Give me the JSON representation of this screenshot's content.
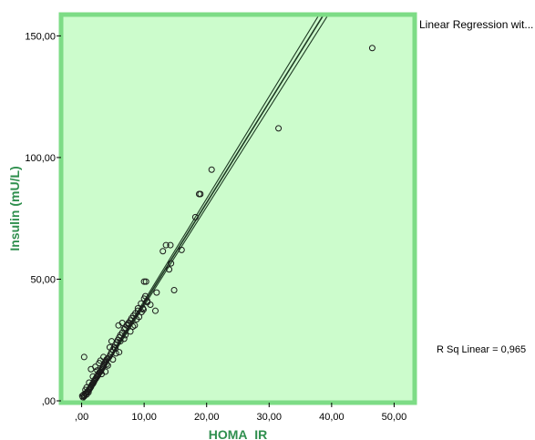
{
  "chart_data": {
    "type": "scatter",
    "title": "",
    "xlabel": "HOMA_IR",
    "ylabel": "Insulin  (mU/L)",
    "xlim": [
      -3,
      53
    ],
    "ylim": [
      0,
      158
    ],
    "x_ticks": [
      0,
      10,
      20,
      30,
      40,
      50
    ],
    "x_tick_labels": [
      ",00",
      "10,00",
      "20,00",
      "30,00",
      "40,00",
      "50,00"
    ],
    "y_ticks": [
      0,
      50,
      100,
      150
    ],
    "y_tick_labels": [
      ",00",
      "50,00",
      "100,00",
      "150,00"
    ],
    "grid": false,
    "legend_label": "Linear Regression wit...",
    "legend_placement": "top-right",
    "annotation": "R Sq Linear = 0,965",
    "plot_background": "#ccfccc",
    "frame_color": "#7ddc86",
    "axis_title_color": "#2f8f4e",
    "regression_line": {
      "fit": {
        "intercept": -1.2,
        "slope": 4.13
      },
      "ci_low": {
        "intercept": -1.5,
        "slope": 4.06
      },
      "ci_high": {
        "intercept": -0.9,
        "slope": 4.2
      },
      "color": "#1f3a24"
    },
    "points": [
      [
        0.1,
        2.0
      ],
      [
        0.2,
        1.5
      ],
      [
        0.3,
        2.5
      ],
      [
        0.4,
        1.8
      ],
      [
        0.5,
        2.2
      ],
      [
        0.4,
        18.0
      ],
      [
        0.6,
        2.8
      ],
      [
        0.7,
        3.2
      ],
      [
        0.8,
        2.6
      ],
      [
        0.9,
        3.6
      ],
      [
        1.0,
        4.0
      ],
      [
        1.1,
        3.5
      ],
      [
        1.2,
        4.6
      ],
      [
        1.3,
        5.0
      ],
      [
        1.4,
        5.4
      ],
      [
        1.5,
        5.8
      ],
      [
        1.6,
        6.4
      ],
      [
        1.7,
        6.8
      ],
      [
        1.8,
        7.0
      ],
      [
        1.9,
        7.5
      ],
      [
        2.0,
        8.0
      ],
      [
        2.1,
        8.5
      ],
      [
        2.2,
        9.0
      ],
      [
        2.3,
        9.2
      ],
      [
        2.4,
        9.8
      ],
      [
        2.5,
        10.0
      ],
      [
        2.6,
        10.5
      ],
      [
        2.7,
        11.0
      ],
      [
        2.8,
        11.5
      ],
      [
        2.9,
        11.8
      ],
      [
        3.0,
        12.0
      ],
      [
        3.1,
        12.5
      ],
      [
        3.2,
        13.0
      ],
      [
        3.3,
        13.5
      ],
      [
        3.4,
        14.0
      ],
      [
        3.5,
        14.5
      ],
      [
        3.6,
        15.0
      ],
      [
        3.7,
        15.5
      ],
      [
        3.8,
        16.0
      ],
      [
        3.9,
        16.5
      ],
      [
        4.0,
        17.0
      ],
      [
        4.2,
        17.5
      ],
      [
        4.4,
        18.0
      ],
      [
        4.6,
        19.0
      ],
      [
        4.8,
        20.0
      ],
      [
        5.0,
        21.0
      ],
      [
        5.2,
        22.0
      ],
      [
        5.4,
        23.0
      ],
      [
        5.6,
        24.0
      ],
      [
        5.8,
        25.0
      ],
      [
        6.0,
        26.0
      ],
      [
        6.2,
        27.0
      ],
      [
        6.5,
        28.0
      ],
      [
        6.8,
        29.5
      ],
      [
        7.0,
        30.0
      ],
      [
        7.2,
        31.0
      ],
      [
        7.5,
        32.0
      ],
      [
        7.8,
        33.0
      ],
      [
        8.0,
        34.0
      ],
      [
        8.3,
        35.0
      ],
      [
        8.6,
        36.0
      ],
      [
        9.0,
        38.0
      ],
      [
        9.5,
        40.0
      ],
      [
        10.0,
        42.0
      ],
      [
        10.2,
        43.0
      ],
      [
        10.5,
        41.0
      ],
      [
        4.5,
        22.0
      ],
      [
        5.5,
        19.5
      ],
      [
        6.2,
        24.5
      ],
      [
        7.0,
        27.0
      ],
      [
        1.5,
        13.0
      ],
      [
        2.2,
        14.0
      ],
      [
        3.0,
        16.5
      ],
      [
        3.8,
        12.0
      ],
      [
        4.8,
        24.5
      ],
      [
        5.9,
        31.0
      ],
      [
        6.5,
        32.0
      ],
      [
        7.5,
        31.5
      ],
      [
        8.2,
        30.5
      ],
      [
        8.8,
        33.5
      ],
      [
        9.0,
        37.0
      ],
      [
        9.6,
        36.5
      ],
      [
        9.8,
        38.0
      ],
      [
        9.9,
        37.5
      ],
      [
        10.5,
        40.5
      ],
      [
        11.0,
        39.5
      ],
      [
        10.0,
        49.0
      ],
      [
        10.3,
        49.0
      ],
      [
        11.8,
        37.0
      ],
      [
        12.0,
        44.5
      ],
      [
        13.0,
        61.5
      ],
      [
        13.5,
        64.0
      ],
      [
        14.2,
        64.0
      ],
      [
        14.0,
        54.0
      ],
      [
        14.3,
        56.5
      ],
      [
        14.8,
        45.5
      ],
      [
        16.0,
        62.0
      ],
      [
        18.2,
        75.5
      ],
      [
        18.8,
        85.0
      ],
      [
        19.0,
        85.0
      ],
      [
        20.8,
        95.0
      ],
      [
        31.5,
        112.0
      ],
      [
        46.5,
        145.0
      ],
      [
        5.0,
        17.0
      ],
      [
        6.0,
        20.0
      ],
      [
        4.0,
        15.0
      ],
      [
        3.5,
        18.0
      ],
      [
        2.8,
        15.5
      ],
      [
        1.8,
        10.0
      ],
      [
        1.2,
        7.5
      ],
      [
        0.8,
        5.5
      ],
      [
        0.6,
        4.5
      ],
      [
        7.8,
        28.5
      ],
      [
        8.5,
        31.0
      ],
      [
        6.8,
        25.5
      ],
      [
        5.4,
        21.5
      ],
      [
        9.2,
        34.5
      ],
      [
        3.2,
        11.0
      ],
      [
        2.5,
        12.5
      ],
      [
        4.2,
        14.5
      ]
    ]
  }
}
